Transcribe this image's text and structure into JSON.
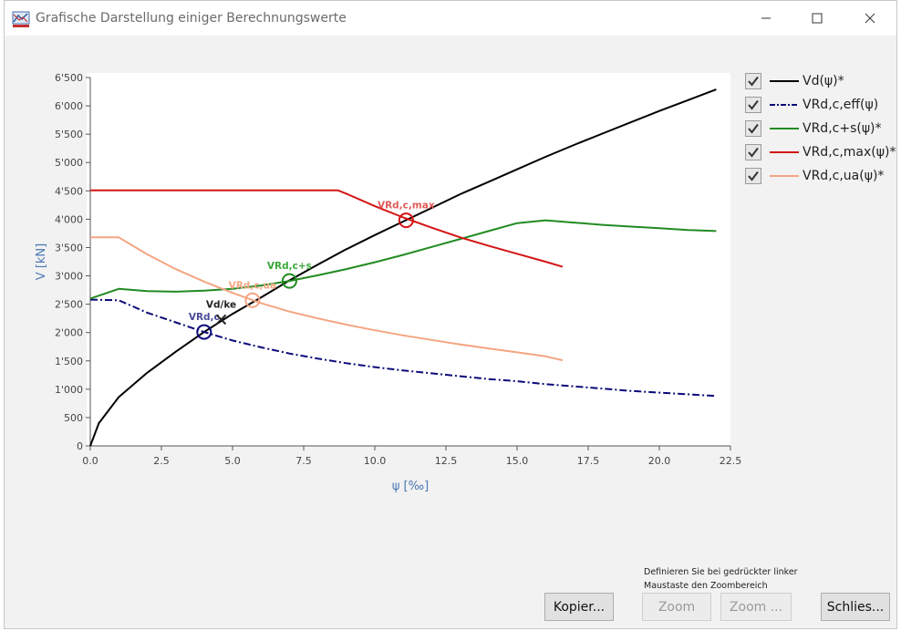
{
  "window": {
    "title": "Grafische Darstellung einiger Berechnungswerte",
    "icon": "graph-app-icon",
    "controls": {
      "minimize": "minimize-icon",
      "maximize": "maximize-icon",
      "close": "close-icon"
    }
  },
  "legend": {
    "items": [
      {
        "label": "Vd(ψ)*",
        "checked": true,
        "color": "#000000",
        "style": "solid"
      },
      {
        "label": "VRd,c,eff(ψ)",
        "checked": true,
        "color": "#0a0a7a",
        "style": "dashdot"
      },
      {
        "label": "VRd,c+s(ψ)*",
        "checked": true,
        "color": "#228b22",
        "style": "solid"
      },
      {
        "label": "VRd,c,max(ψ)*",
        "checked": true,
        "color": "#d41414",
        "style": "solid"
      },
      {
        "label": "VRd,c,ua(ψ)*",
        "checked": true,
        "color": "#f4a582",
        "style": "solid"
      }
    ]
  },
  "hint": {
    "line1": "Definieren Sie bei gedrückter linker",
    "line2": "Maustaste den Zoombereich"
  },
  "buttons": {
    "copy": "Kopier...",
    "zoom": "Zoom",
    "zoom_dots": "Zoom ...",
    "close": "Schlies..."
  },
  "chart_data": {
    "type": "line",
    "xlabel": "ψ [‰]",
    "ylabel": "V [kN]",
    "xlim": [
      0,
      22.5
    ],
    "ylim": [
      0,
      6500
    ],
    "x_ticks": [
      "0.0",
      "2.5",
      "5.0",
      "7.5",
      "10.0",
      "12.5",
      "15.0",
      "17.5",
      "20.0",
      "22.5"
    ],
    "y_ticks": [
      "0",
      "500",
      "1'000",
      "1'500",
      "2'000",
      "2'500",
      "3'000",
      "3'500",
      "4'000",
      "4'500",
      "5'000",
      "5'500",
      "6'000",
      "6'500"
    ],
    "grid": false,
    "legend_position": "right",
    "series": [
      {
        "name": "Vd(ψ)*",
        "color": "#000000",
        "style": "solid",
        "x": [
          0,
          0.3,
          1,
          2,
          3,
          4,
          5,
          6,
          7,
          8,
          9,
          10,
          11,
          12,
          13,
          14,
          15,
          16,
          17,
          18,
          19,
          20,
          21,
          22
        ],
        "y": [
          0,
          400,
          860,
          1290,
          1660,
          2010,
          2330,
          2620,
          2920,
          3200,
          3470,
          3720,
          3960,
          4200,
          4440,
          4660,
          4880,
          5100,
          5310,
          5510,
          5710,
          5910,
          6100,
          6290
        ]
      },
      {
        "name": "VRd,c,eff(ψ)",
        "color": "#0a0a7a",
        "style": "dashdot",
        "x": [
          0,
          1,
          2,
          3,
          4,
          5,
          6,
          7,
          8,
          9,
          10,
          11,
          12,
          13,
          14,
          15,
          16,
          17,
          18,
          19,
          20,
          21,
          22
        ],
        "y": [
          2580,
          2570,
          2350,
          2180,
          2010,
          1860,
          1740,
          1630,
          1540,
          1460,
          1390,
          1330,
          1280,
          1230,
          1180,
          1140,
          1090,
          1050,
          1010,
          970,
          940,
          910,
          880
        ]
      },
      {
        "name": "VRd,c+s(ψ)*",
        "color": "#228b22",
        "style": "solid",
        "x": [
          0,
          1,
          2,
          3,
          4,
          5,
          6,
          7,
          8,
          9,
          10,
          11,
          12,
          13,
          14,
          15,
          16,
          17,
          18,
          19,
          20,
          21,
          22
        ],
        "y": [
          2600,
          2770,
          2730,
          2720,
          2740,
          2770,
          2830,
          2910,
          3010,
          3120,
          3240,
          3370,
          3510,
          3650,
          3790,
          3930,
          3980,
          3940,
          3900,
          3870,
          3840,
          3810,
          3790
        ]
      },
      {
        "name": "VRd,c,max(ψ)*",
        "color": "#d41414",
        "style": "solid",
        "x": [
          0,
          8.7,
          9,
          10,
          11,
          12,
          13,
          14,
          15,
          16,
          16.6
        ],
        "y": [
          4510,
          4510,
          4450,
          4230,
          4030,
          3850,
          3680,
          3530,
          3390,
          3250,
          3160
        ]
      },
      {
        "name": "VRd,c,ua(ψ)*",
        "color": "#f4a582",
        "style": "solid",
        "x": [
          0,
          1,
          2,
          3,
          4,
          5,
          6,
          7,
          8,
          9,
          10,
          11,
          12,
          13,
          14,
          15,
          16,
          16.6
        ],
        "y": [
          3680,
          3680,
          3380,
          3120,
          2900,
          2700,
          2520,
          2370,
          2250,
          2140,
          2040,
          1950,
          1870,
          1790,
          1720,
          1650,
          1580,
          1510
        ]
      }
    ],
    "markers": [
      {
        "label": "VRd,c,max",
        "x": 11.1,
        "y": 3980,
        "color": "#d41414",
        "label_color": "#e05a5a",
        "type": "circle"
      },
      {
        "label": "VRd,c+s",
        "x": 7.0,
        "y": 2910,
        "color": "#228b22",
        "label_color": "#3aa83a",
        "type": "circle"
      },
      {
        "label": "VRd,c,ua",
        "x": 5.7,
        "y": 2570,
        "color": "#f4a582",
        "label_color": "#f4a582",
        "type": "circle"
      },
      {
        "label": "VRd,c",
        "x": 4.0,
        "y": 2010,
        "color": "#0a0a7a",
        "label_color": "#4a4a9a",
        "type": "circle"
      },
      {
        "label": "Vd/ke",
        "x": 4.6,
        "y": 2230,
        "color": "#222222",
        "label_color": "#222222",
        "type": "cross"
      }
    ]
  }
}
